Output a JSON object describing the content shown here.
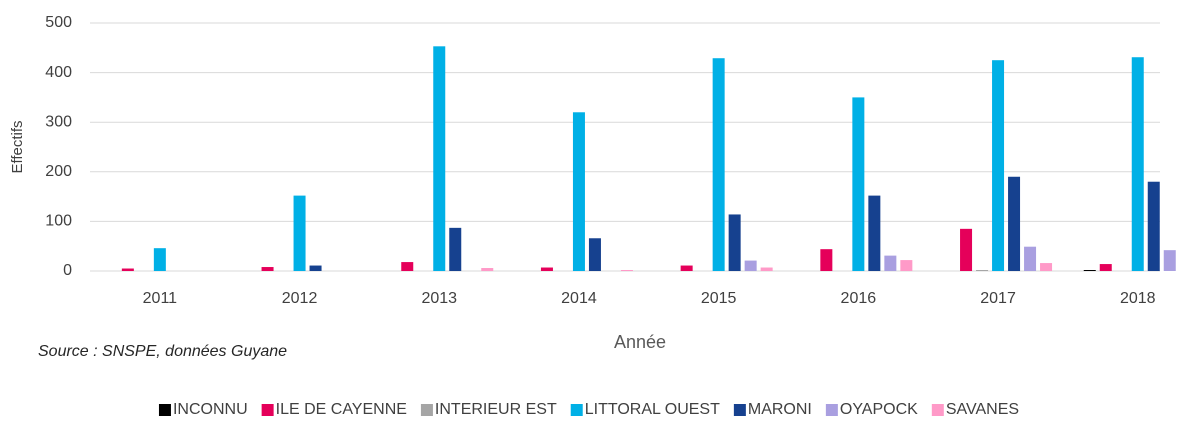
{
  "chart_data": {
    "type": "bar",
    "categories": [
      "2011",
      "2012",
      "2013",
      "2014",
      "2015",
      "2016",
      "2017",
      "2018"
    ],
    "series": [
      {
        "name": "INCONNU",
        "color": "#000000",
        "values": [
          0,
          0,
          0,
          0,
          0,
          0,
          0,
          2
        ]
      },
      {
        "name": "ILE DE CAYENNE",
        "color": "#e5005a",
        "values": [
          5,
          8,
          18,
          7,
          11,
          44,
          85,
          14
        ]
      },
      {
        "name": "INTERIEUR EST",
        "color": "#a5a5a5",
        "values": [
          0,
          0,
          0,
          0,
          0,
          0,
          2,
          0
        ]
      },
      {
        "name": "LITTORAL OUEST",
        "color": "#00b0e6",
        "values": [
          46,
          152,
          453,
          320,
          429,
          350,
          425,
          431
        ]
      },
      {
        "name": "MARONI",
        "color": "#16418f",
        "values": [
          0,
          11,
          87,
          66,
          114,
          152,
          190,
          180
        ]
      },
      {
        "name": "OYAPOCK",
        "color": "#a99fe0",
        "values": [
          0,
          0,
          0,
          0,
          21,
          31,
          49,
          42
        ]
      },
      {
        "name": "SAVANES",
        "color": "#ff9ac8",
        "values": [
          0,
          0,
          6,
          2,
          7,
          22,
          16,
          5
        ]
      }
    ],
    "ylabel": "Effectifs",
    "xlabel": "Année",
    "source": "Source : SNSPE, données Guyane",
    "ylim": [
      0,
      500
    ],
    "yticks": [
      0,
      100,
      200,
      300,
      400,
      500
    ],
    "grid": true,
    "legend": "bottom"
  }
}
